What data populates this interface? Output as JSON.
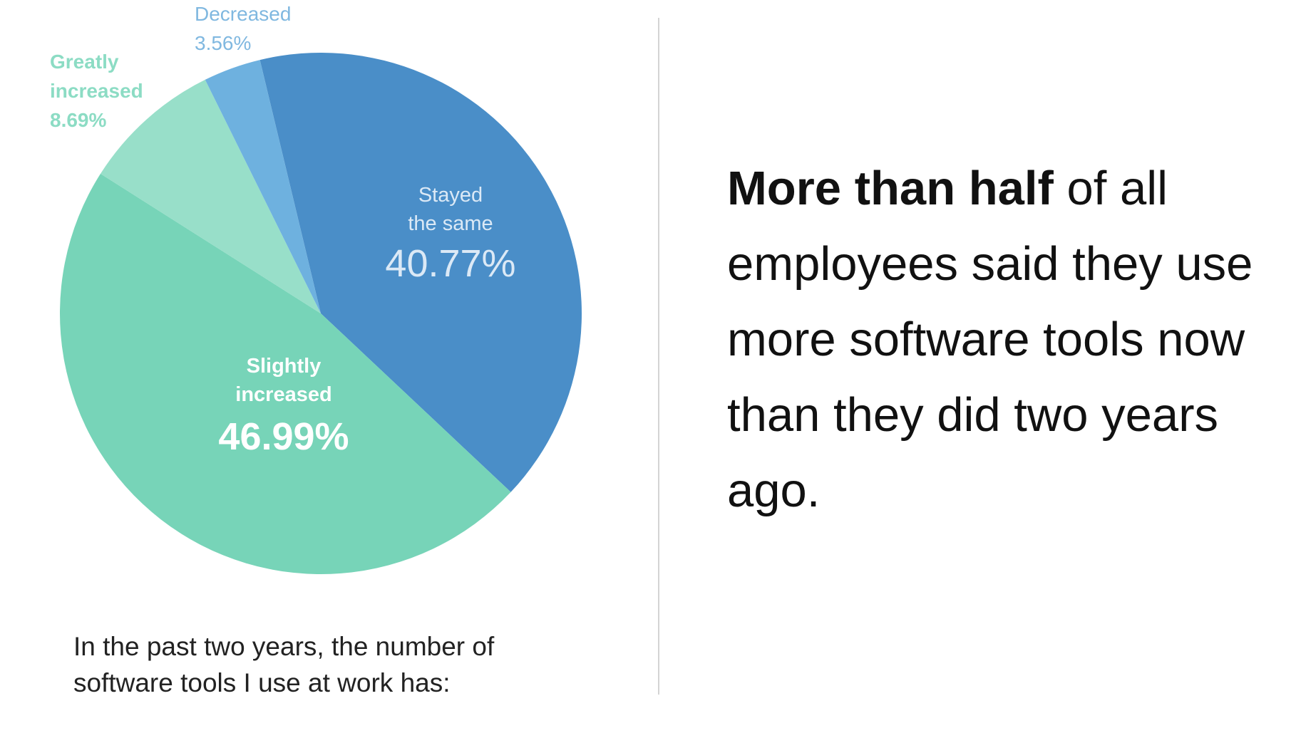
{
  "chart_data": {
    "type": "pie",
    "slices": [
      {
        "label_lines": [
          "Stayed",
          "the same"
        ],
        "value": 40.77,
        "display": "40.77%",
        "color": "#4a8ec8",
        "label_color": "#dbe9f6"
      },
      {
        "label_lines": [
          "Slightly",
          "increased"
        ],
        "value": 46.99,
        "display": "46.99%",
        "color": "#77d4b8",
        "label_color": "#ffffff"
      },
      {
        "label_lines": [
          "Greatly",
          "increased"
        ],
        "value": 8.69,
        "display": "8.69%",
        "color": "#98dfc9",
        "label_color": "#8cdcc4"
      },
      {
        "label_lines": [
          "Decreased"
        ],
        "value": 3.56,
        "display": "3.56%",
        "color": "#6eb1df",
        "label_color": "#80b8e0"
      }
    ]
  },
  "caption": {
    "line1": "In the past two years, the number of",
    "line2": "software tools I use at work has:"
  },
  "headline": {
    "bold": "More than half",
    "rest": " of all employees said they use more software tools now than they did two years ago."
  }
}
